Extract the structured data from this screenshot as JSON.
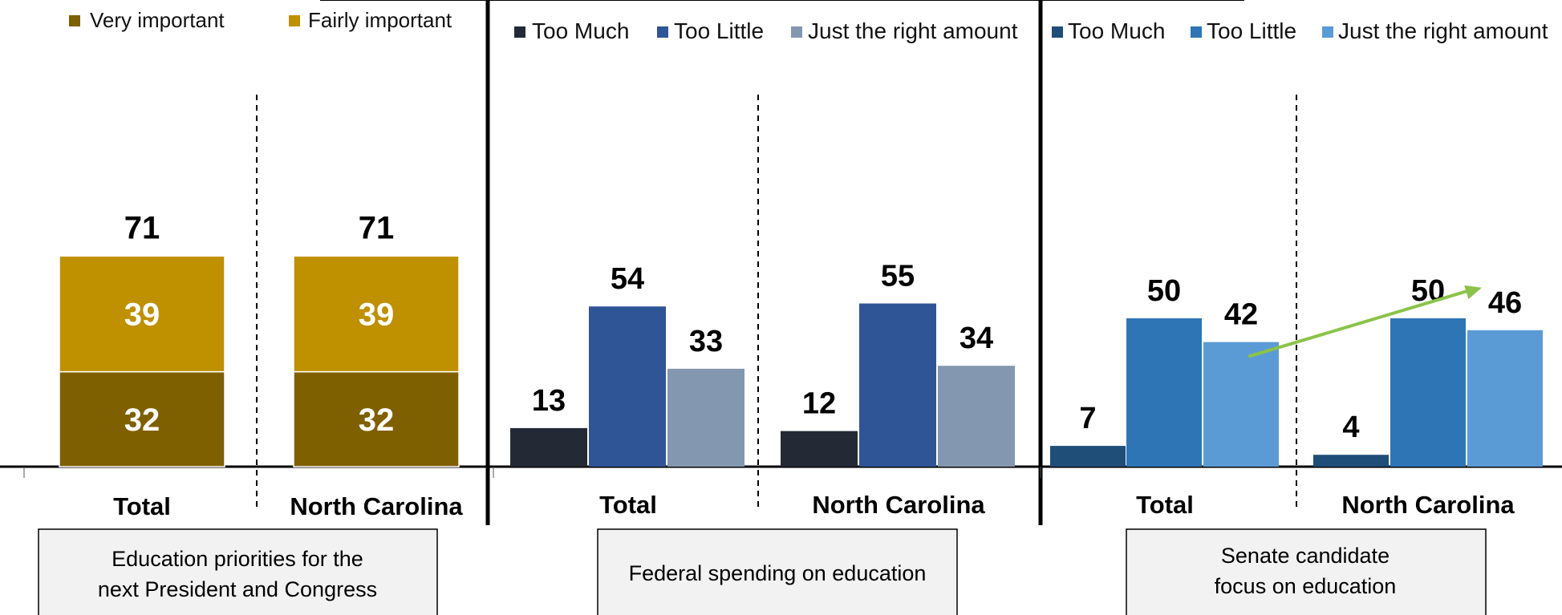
{
  "chart_data": [
    {
      "type": "bar",
      "stacked": true,
      "categories": [
        "Total",
        "North Carolina"
      ],
      "series": [
        {
          "name": "Very important",
          "values": [
            32,
            32
          ],
          "color": "#7f6000"
        },
        {
          "name": "Fairly important",
          "values": [
            39,
            39
          ],
          "color": "#bf9000"
        }
      ],
      "totals": [
        71,
        71
      ],
      "caption": [
        "Education priorities for the",
        "next President and Congress"
      ],
      "legend_position": "top",
      "ylim": [
        0,
        100
      ],
      "grid": false
    },
    {
      "type": "bar",
      "categories": [
        "Total",
        "North Carolina"
      ],
      "series": [
        {
          "name": "Too Much",
          "values": [
            13,
            12
          ],
          "color": "#232a35"
        },
        {
          "name": "Too Little",
          "values": [
            54,
            55
          ],
          "color": "#2f5597"
        },
        {
          "name": "Just the right amount",
          "values": [
            33,
            34
          ],
          "color": "#8497b0"
        }
      ],
      "caption": [
        "Federal spending on education"
      ],
      "legend_position": "top",
      "ylim": [
        0,
        100
      ],
      "grid": false
    },
    {
      "type": "bar",
      "categories": [
        "Total",
        "North Carolina"
      ],
      "series": [
        {
          "name": "Too Much",
          "values": [
            7,
            4
          ],
          "color": "#1f4e79"
        },
        {
          "name": "Too Little",
          "values": [
            50,
            50
          ],
          "color": "#2e75b6"
        },
        {
          "name": "Just the right amount",
          "values": [
            42,
            46
          ],
          "color": "#5b9bd5"
        }
      ],
      "caption": [
        "Senate candidate",
        "focus on education"
      ],
      "legend_position": "top",
      "annotation": "arrow from Total 'Just the right amount' to North Carolina 'Just the right amount'",
      "annotation_color": "#8bc34a",
      "ylim": [
        0,
        100
      ],
      "grid": false
    }
  ]
}
